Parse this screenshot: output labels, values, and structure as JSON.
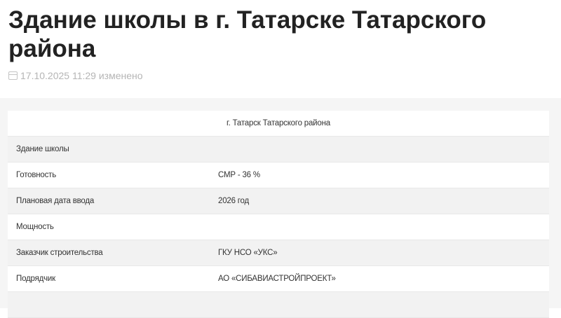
{
  "title": "Здание школы в г. Татарске Татарского района",
  "meta": {
    "date": "17.10.2025 11:29 изменено",
    "icon": "calendar-icon"
  },
  "table": {
    "header": "г. Татарск Татарского района",
    "rows": [
      {
        "label": "Здание школы",
        "value": ""
      },
      {
        "label": "Готовность",
        "value": "СМР - 36 %"
      },
      {
        "label": "Плановая дата ввода",
        "value": "2026 год"
      },
      {
        "label": "Мощность",
        "value": ""
      },
      {
        "label": "Заказчик строительства",
        "value": "ГКУ НСО «УКС»"
      },
      {
        "label": "Подрядчик",
        "value": "АО «СИБАВИАСТРОЙПРОЕКТ»"
      }
    ]
  }
}
